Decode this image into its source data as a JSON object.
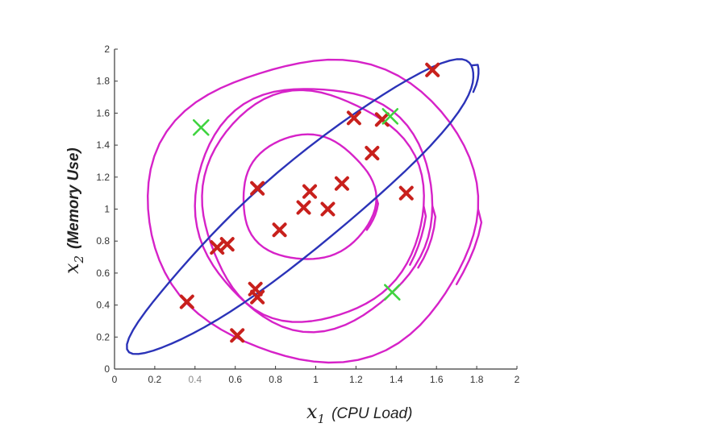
{
  "chart_data": {
    "type": "scatter",
    "xlim": [
      0,
      2
    ],
    "ylim": [
      0,
      2
    ],
    "x_ticks": [
      "0",
      "0.2",
      "0.4",
      "0.6",
      "0.8",
      "1",
      "1.2",
      "1.4",
      "1.6",
      "1.8",
      "2"
    ],
    "y_ticks": [
      "0",
      "0.2",
      "0.4",
      "0.6",
      "0.8",
      "1",
      "1.2",
      "1.4",
      "1.6",
      "1.8",
      "2"
    ],
    "xlabel": {
      "symbol": "x",
      "subscript": "1",
      "text": "(CPU Load)"
    },
    "ylabel": {
      "symbol": "x",
      "subscript": "2",
      "text": "(Memory Use)"
    },
    "grid": false,
    "series": [
      {
        "marker": "x",
        "color": "#c8201c",
        "points": [
          [
            0.36,
            0.42
          ],
          [
            0.51,
            0.76
          ],
          [
            0.56,
            0.78
          ],
          [
            0.61,
            0.21
          ],
          [
            0.7,
            0.5
          ],
          [
            0.71,
            0.45
          ],
          [
            0.71,
            1.13
          ],
          [
            0.82,
            0.87
          ],
          [
            0.94,
            1.01
          ],
          [
            0.97,
            1.11
          ],
          [
            1.06,
            1.0
          ],
          [
            1.13,
            1.16
          ],
          [
            1.19,
            1.57
          ],
          [
            1.28,
            1.35
          ],
          [
            1.33,
            1.56
          ],
          [
            1.45,
            1.1
          ],
          [
            1.58,
            1.87
          ]
        ]
      },
      {
        "marker": "x",
        "color": "#3fd43f",
        "points": [
          [
            0.43,
            1.51
          ],
          [
            1.37,
            1.58
          ],
          [
            1.38,
            0.48
          ]
        ]
      }
    ],
    "annotations": [
      {
        "shape": "hand-drawn ellipse",
        "color": "#d622c8",
        "center": [
          0.96,
          1.07
        ],
        "radius_x": 0.33,
        "radius_y": 0.39
      },
      {
        "shape": "hand-drawn ellipse",
        "color": "#d622c8",
        "center": [
          0.98,
          1.02
        ],
        "radius_x": 0.55,
        "radius_y": 0.72
      },
      {
        "shape": "hand-drawn ellipse",
        "color": "#d622c8",
        "center": [
          0.99,
          1.02
        ],
        "radius_x": 0.59,
        "radius_y": 0.76
      },
      {
        "shape": "hand-drawn ellipse",
        "color": "#d622c8",
        "center": [
          0.99,
          1.0
        ],
        "radius_x": 0.82,
        "radius_y": 0.94
      },
      {
        "shape": "tilted ellipse",
        "color": "#2b33b8",
        "center": [
          0.95,
          1.03
        ],
        "radius_major": 1.11,
        "radius_minor": 0.26,
        "angle_deg": 40
      }
    ]
  }
}
